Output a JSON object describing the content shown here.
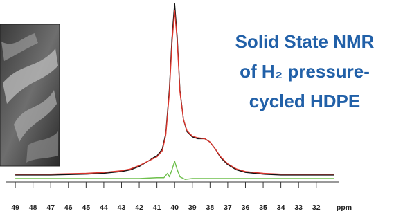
{
  "chart_data": {
    "type": "line",
    "title_lines": [
      "Solid State NMR",
      "of H₂ pressure-",
      "cycled HDPE"
    ],
    "x_label": "ppm",
    "xlim": [
      49.55,
      30.7
    ],
    "xticks": [
      49,
      48,
      47,
      46,
      45,
      44,
      43,
      42,
      41,
      40,
      39,
      38,
      37,
      36,
      35,
      34,
      33,
      32
    ],
    "ylim": [
      -3,
      100
    ],
    "series": [
      {
        "color": "#111111",
        "x": [
          49,
          47,
          45,
          44,
          43,
          42.5,
          42,
          41.5,
          41.2,
          41,
          40.7,
          40.5,
          40.3,
          40.15,
          40.0,
          39.85,
          39.7,
          39.5,
          39.3,
          39,
          38.7,
          38.3,
          38,
          37.7,
          37.4,
          37,
          36.5,
          36,
          35,
          34,
          33,
          32,
          31
        ],
        "values": [
          1,
          1,
          1.5,
          2,
          3,
          4,
          6,
          9,
          11,
          12,
          16,
          25,
          50,
          80,
          100,
          80,
          50,
          33,
          26,
          23,
          22,
          22,
          20,
          16,
          11,
          7,
          4,
          2.5,
          1.5,
          1,
          1,
          1,
          1
        ]
      },
      {
        "color": "#d9342b",
        "x": [
          49,
          47,
          45,
          44,
          43,
          42.5,
          42,
          41.5,
          41.2,
          41,
          40.7,
          40.5,
          40.3,
          40.15,
          40.0,
          39.85,
          39.7,
          39.5,
          39.3,
          39,
          38.7,
          38.3,
          38,
          37.7,
          37.4,
          37,
          36.5,
          36,
          35,
          34,
          33,
          32,
          31
        ],
        "values": [
          1.5,
          1.5,
          2,
          2.5,
          3.5,
          4.5,
          6.5,
          9,
          10.5,
          11.5,
          15,
          24,
          48,
          77,
          96,
          78,
          49,
          33,
          26.5,
          23.5,
          22.5,
          22,
          20,
          16,
          11.5,
          7.5,
          4.5,
          3,
          2,
          1.5,
          1.5,
          1.5,
          1.5
        ]
      },
      {
        "color": "#6dbf4b",
        "x": [
          49,
          44,
          42,
          41,
          40.6,
          40.4,
          40.3,
          40.15,
          40.0,
          39.85,
          39.7,
          39.4,
          39,
          38,
          36,
          34,
          32,
          31
        ],
        "values": [
          -1,
          -1,
          -1,
          -0.5,
          -0.5,
          2,
          0,
          4,
          9,
          4,
          0,
          -1.5,
          -1,
          -1,
          -1,
          -1,
          -1,
          -1
        ]
      }
    ]
  }
}
